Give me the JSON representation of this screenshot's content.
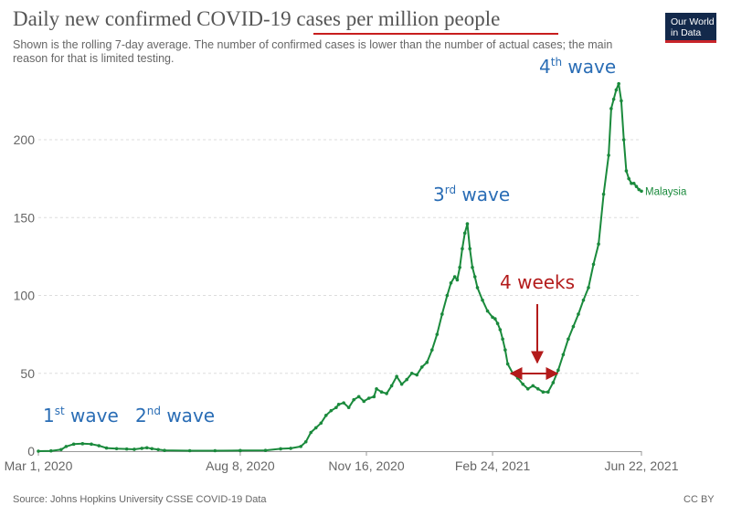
{
  "header": {
    "title": "Daily new confirmed COVID-19 cases per million people",
    "subtitle": "Shown is the rolling 7-day average. The number of confirmed cases is lower than the number of actual cases; the main reason for that is limited testing.",
    "logo_line1": "Our World",
    "logo_line2": "in Data"
  },
  "footer": {
    "source": "Source: Johns Hopkins University CSSE COVID-19 Data",
    "license": "CC BY"
  },
  "colors": {
    "series": "#1a8a3c",
    "annotation_blue": "#2a6db5",
    "annotation_red": "#b31b1b",
    "grid": "#dddddd",
    "axis_text": "#666666"
  },
  "chart_data": {
    "type": "line",
    "title": "Daily new confirmed COVID-19 cases per million people",
    "xlabel": "",
    "ylabel": "",
    "ylim": [
      0,
      240
    ],
    "yticks": [
      0,
      50,
      100,
      150,
      200
    ],
    "x_start_date": "2020-03-01",
    "x_end_date": "2021-06-22",
    "xticks": [
      {
        "day": 0,
        "label": "Mar 1, 2020"
      },
      {
        "day": 160,
        "label": "Aug 8, 2020"
      },
      {
        "day": 260,
        "label": "Nov 16, 2020"
      },
      {
        "day": 360,
        "label": "Feb 24, 2021"
      },
      {
        "day": 478,
        "label": "Jun 22, 2021"
      }
    ],
    "series": [
      {
        "name": "Malaysia",
        "points": [
          [
            0,
            0
          ],
          [
            10,
            0.2
          ],
          [
            18,
            1
          ],
          [
            22,
            3
          ],
          [
            28,
            4.5
          ],
          [
            35,
            4.8
          ],
          [
            42,
            4.5
          ],
          [
            48,
            3.5
          ],
          [
            54,
            2
          ],
          [
            62,
            1.6
          ],
          [
            70,
            1.4
          ],
          [
            76,
            1.2
          ],
          [
            82,
            1.8
          ],
          [
            86,
            2.2
          ],
          [
            90,
            1.6
          ],
          [
            95,
            1
          ],
          [
            100,
            0.5
          ],
          [
            120,
            0.3
          ],
          [
            140,
            0.3
          ],
          [
            160,
            0.4
          ],
          [
            180,
            0.5
          ],
          [
            192,
            1.5
          ],
          [
            200,
            1.8
          ],
          [
            208,
            3
          ],
          [
            212,
            6
          ],
          [
            216,
            12
          ],
          [
            220,
            15
          ],
          [
            224,
            18
          ],
          [
            228,
            23
          ],
          [
            232,
            26
          ],
          [
            236,
            28
          ],
          [
            238,
            30
          ],
          [
            242,
            31
          ],
          [
            246,
            28
          ],
          [
            250,
            33
          ],
          [
            254,
            35
          ],
          [
            258,
            32
          ],
          [
            262,
            34
          ],
          [
            266,
            35
          ],
          [
            268,
            40
          ],
          [
            272,
            38
          ],
          [
            276,
            37
          ],
          [
            280,
            42
          ],
          [
            284,
            48
          ],
          [
            288,
            43
          ],
          [
            292,
            46
          ],
          [
            296,
            50
          ],
          [
            300,
            49
          ],
          [
            304,
            54
          ],
          [
            308,
            57
          ],
          [
            312,
            65
          ],
          [
            316,
            75
          ],
          [
            320,
            88
          ],
          [
            324,
            100
          ],
          [
            327,
            108
          ],
          [
            330,
            112
          ],
          [
            332,
            110
          ],
          [
            334,
            118
          ],
          [
            336,
            130
          ],
          [
            338,
            140
          ],
          [
            340,
            146
          ],
          [
            342,
            130
          ],
          [
            344,
            118
          ],
          [
            346,
            112
          ],
          [
            348,
            105
          ],
          [
            352,
            97
          ],
          [
            356,
            90
          ],
          [
            360,
            86
          ],
          [
            362,
            85
          ],
          [
            364,
            82
          ],
          [
            366,
            78
          ],
          [
            368,
            72
          ],
          [
            370,
            65
          ],
          [
            372,
            56
          ],
          [
            376,
            50
          ],
          [
            380,
            47
          ],
          [
            384,
            43
          ],
          [
            388,
            40
          ],
          [
            392,
            42
          ],
          [
            396,
            40
          ],
          [
            400,
            38
          ],
          [
            404,
            38
          ],
          [
            408,
            44
          ],
          [
            412,
            52
          ],
          [
            416,
            62
          ],
          [
            420,
            72
          ],
          [
            424,
            80
          ],
          [
            428,
            88
          ],
          [
            432,
            97
          ],
          [
            436,
            105
          ],
          [
            440,
            120
          ],
          [
            444,
            133
          ],
          [
            448,
            165
          ],
          [
            452,
            190
          ],
          [
            454,
            220
          ],
          [
            456,
            226
          ],
          [
            458,
            232
          ],
          [
            460,
            236
          ],
          [
            462,
            225
          ],
          [
            464,
            200
          ],
          [
            466,
            180
          ],
          [
            468,
            175
          ],
          [
            470,
            172
          ],
          [
            472,
            172
          ],
          [
            474,
            170
          ],
          [
            476,
            168
          ],
          [
            478,
            167
          ]
        ]
      }
    ],
    "end_label": "Malaysia",
    "annotations": [
      {
        "id": "wave1",
        "text": "1",
        "sup": "st",
        "rest": " wave"
      },
      {
        "id": "wave2",
        "text": "2",
        "sup": "nd",
        "rest": " wave"
      },
      {
        "id": "wave3",
        "text": "3",
        "sup": "rd",
        "rest": " wave"
      },
      {
        "id": "wave4",
        "text": "4",
        "sup": "th",
        "rest": " wave"
      },
      {
        "id": "gap",
        "text": "4 weeks",
        "sup": "",
        "rest": ""
      }
    ]
  }
}
